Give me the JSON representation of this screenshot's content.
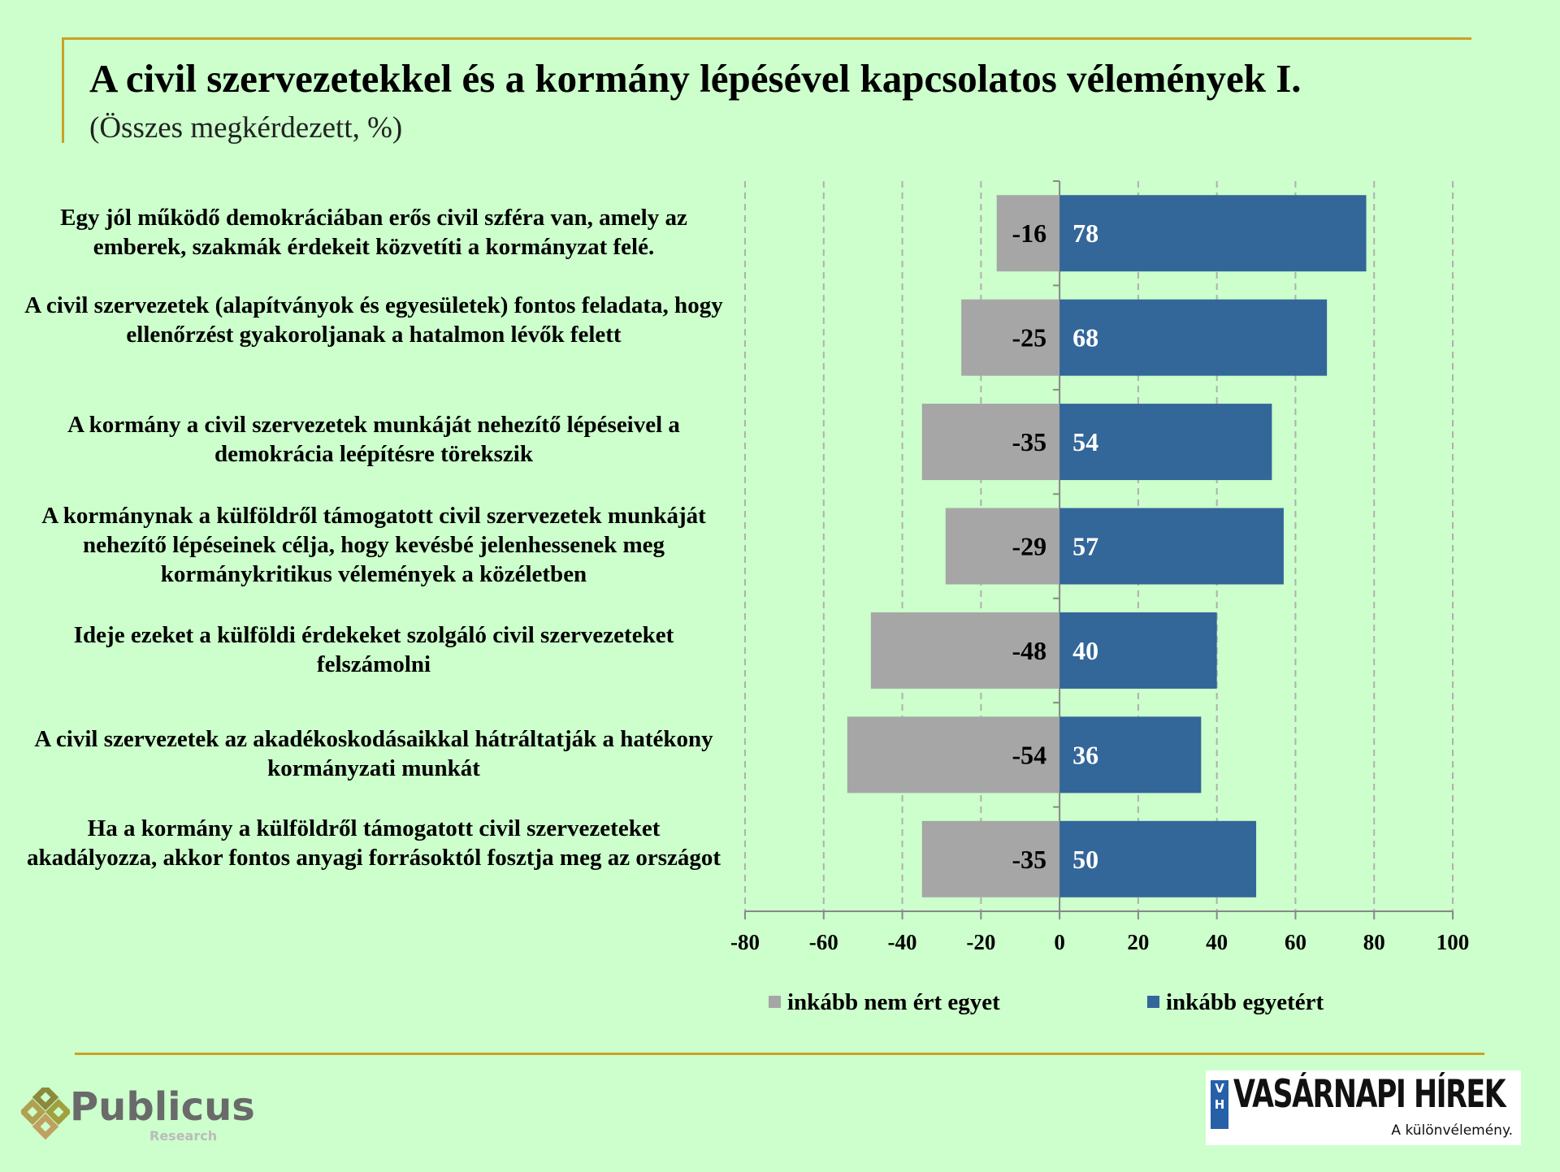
{
  "title": "A civil szervezetekkel és a kormány lépésével kapcsolatos vélemények I.",
  "subtitle": "(Összes megkérdezett, %)",
  "colors": {
    "disagree": "#a6a6a6",
    "agree": "#336699",
    "grid": "#b0b0b0",
    "frame": "#c9a227",
    "background": "#ccffcc"
  },
  "chart_data": {
    "type": "bar",
    "orientation": "horizontal",
    "stacked": "diverging",
    "categories": [
      "Egy jól működő demokráciában erős civil szféra van, amely az emberek, szakmák érdekeit közvetíti a kormányzat felé.",
      "A civil szervezetek (alapítványok és egyesületek) fontos feladata, hogy ellenőrzést gyakoroljanak a hatalmon lévők felett",
      "A kormány a civil szervezetek munkáját nehezítő lépéseivel a demokrácia leépítésre törekszik",
      "A kormánynak a külföldről támogatott civil szervezetek munkáját nehezítő lépéseinek célja, hogy kevésbé jelenhessenek meg kormánykritikus vélemények a közéletben",
      "Ideje ezeket a külföldi érdekeket szolgáló civil szervezeteket felszámolni",
      "A civil szervezetek az akadékoskodásaikkal hátráltatják a hatékony kormányzati munkát",
      "Ha a kormány a külföldről támogatott civil szervezeteket akadályozza, akkor fontos anyagi forrásoktól fosztja meg az országot"
    ],
    "series": [
      {
        "name": "inkább nem ért egyet",
        "values": [
          -16,
          -25,
          -35,
          -29,
          -48,
          -54,
          -35
        ]
      },
      {
        "name": "inkább egyetért",
        "values": [
          78,
          68,
          54,
          57,
          40,
          36,
          50
        ]
      }
    ],
    "xlim": [
      -80,
      100
    ],
    "xticks": [
      -80,
      -60,
      -40,
      -20,
      0,
      20,
      40,
      60,
      80,
      100
    ],
    "xtick_labels": [
      "-80",
      "-60",
      "-40",
      "-20",
      "0",
      "20",
      "40",
      "60",
      "80",
      "100"
    ],
    "grid": "vertical dashed",
    "legend_position": "bottom"
  },
  "logos": {
    "publicus_name": "Publicus",
    "publicus_sub": "Research",
    "vh_mark": "VH",
    "vh_name": "VASÁRNAPI HÍREK",
    "vh_tagline": "A különvélemény."
  }
}
